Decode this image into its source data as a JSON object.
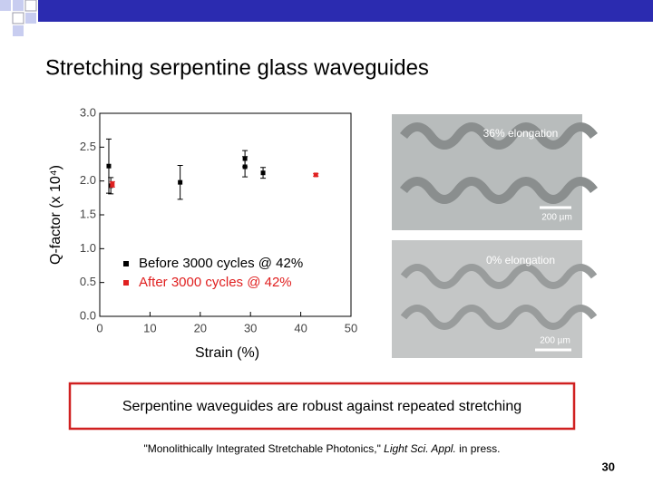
{
  "slide": {
    "title": "Stretching serpentine glass waveguides",
    "images": [
      {
        "caption": "36% elongation",
        "scale": "200 µm"
      },
      {
        "caption": "0% elongation",
        "scale": "200 µm"
      }
    ],
    "callout": "Serpentine waveguides are robust against repeated stretching",
    "citation": {
      "quote": "\"Monolithically Integrated Stretchable Photonics,\"",
      "journal": "Light Sci. Appl.",
      "rest": "in press."
    },
    "page_number": "30"
  },
  "chart_data": {
    "type": "scatter",
    "xlabel": "Strain (%)",
    "ylabel": "Q-factor (x 10⁴)",
    "xlim": [
      0,
      50
    ],
    "xticks": [
      0,
      10,
      20,
      30,
      40,
      50
    ],
    "ylim": [
      0,
      3
    ],
    "yticks": [
      {
        "value": 0,
        "label": "0.0"
      },
      0.5,
      {
        "value": 1,
        "label": "1.0"
      },
      1.5,
      {
        "value": 2,
        "label": "2.0"
      },
      2.5,
      {
        "value": 3,
        "label": "3.0"
      }
    ],
    "series": [
      {
        "name": "Before 3000 cycles @ 42%",
        "color": "#000000",
        "x": [
          1.8,
          2.2,
          16,
          28.9,
          28.9,
          32.5
        ],
        "values": [
          2.22,
          1.93,
          1.98,
          2.33,
          2.21,
          2.12
        ],
        "errors": [
          0.4,
          0.12,
          0.25,
          0.12,
          0.15,
          0.08
        ]
      },
      {
        "name": "After 3000 cycles @ 42%",
        "color": "#e02020",
        "x": [
          2.5,
          43
        ],
        "values": [
          1.95,
          2.09
        ],
        "errors": [
          0.04,
          0.02
        ]
      }
    ]
  }
}
